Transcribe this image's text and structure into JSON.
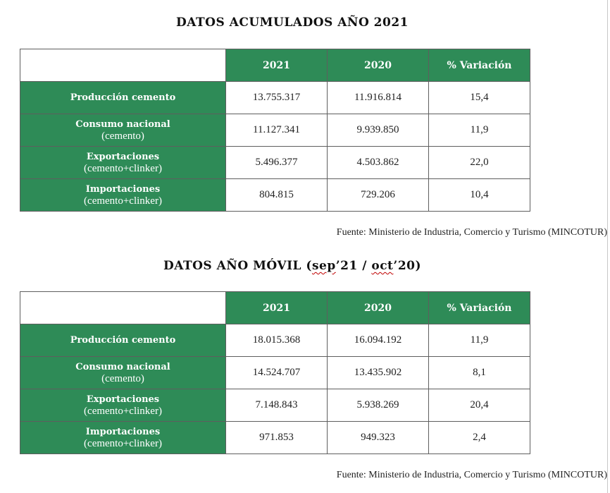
{
  "table1": {
    "title_a": "DATOS ACUMULADOS AÑO 2021",
    "headers": [
      "2021",
      "2020",
      "% Variación"
    ],
    "rows": [
      {
        "label": "Producción cemento",
        "sub": "",
        "v2021": "13.755.317",
        "v2020": "11.916.814",
        "var": "15,4"
      },
      {
        "label": "Consumo nacional",
        "sub": "(cemento)",
        "v2021": "11.127.341",
        "v2020": "9.939.850",
        "var": "11,9"
      },
      {
        "label": "Exportaciones",
        "sub": "(cemento+clinker)",
        "v2021": "5.496.377",
        "v2020": "4.503.862",
        "var": "22,0"
      },
      {
        "label": "Importaciones",
        "sub": "(cemento+clinker)",
        "v2021": "804.815",
        "v2020": "729.206",
        "var": "10,4"
      }
    ],
    "source": "Fuente: Ministerio de Industria, Comercio y Turismo (MINCOTUR)"
  },
  "table2": {
    "title_a": "DATOS AÑO MÓVIL (",
    "title_b": "sep",
    "title_c": "’21 / ",
    "title_d": "oct",
    "title_e": "’20)",
    "headers": [
      "2021",
      "2020",
      "% Variación"
    ],
    "rows": [
      {
        "label": "Producción cemento",
        "sub": "",
        "v2021": "18.015.368",
        "v2020": "16.094.192",
        "var": "11,9"
      },
      {
        "label": "Consumo nacional",
        "sub": "(cemento)",
        "v2021": "14.524.707",
        "v2020": "13.435.902",
        "var": "8,1"
      },
      {
        "label": "Exportaciones",
        "sub": "(cemento+clinker)",
        "v2021": "7.148.843",
        "v2020": "5.938.269",
        "var": "20,4"
      },
      {
        "label": "Importaciones",
        "sub": "(cemento+clinker)",
        "v2021": "971.853",
        "v2020": "949.323",
        "var": "2,4"
      }
    ],
    "source": "Fuente: Ministerio de Industria, Comercio y Turismo (MINCOTUR)"
  },
  "colors": {
    "header_green": "#2e8b57",
    "border": "#5e5e5e"
  }
}
